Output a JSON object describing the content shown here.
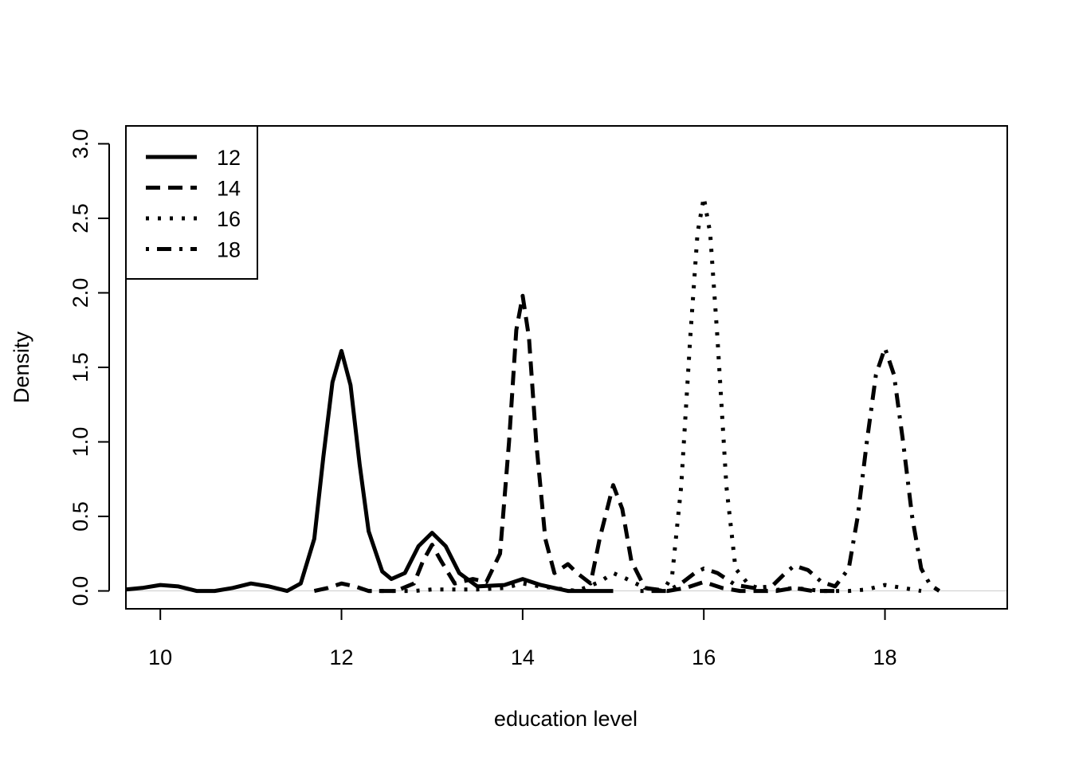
{
  "chart_data": {
    "type": "line",
    "title": "",
    "xlabel": "education level",
    "ylabel": "Density",
    "xlim": [
      9.62,
      19.35
    ],
    "ylim": [
      -0.12,
      3.12
    ],
    "xticks": [
      10,
      12,
      14,
      16,
      18
    ],
    "xtick_labels": [
      "10",
      "12",
      "14",
      "16",
      "18"
    ],
    "yticks": [
      0,
      0.5,
      1,
      1.5,
      2,
      2.5,
      3
    ],
    "ytick_labels": [
      "0.0",
      "0.5",
      "1.0",
      "1.5",
      "2.0",
      "2.5",
      "3.0"
    ],
    "grid": false,
    "legend_position": "top-left",
    "baseline": 0,
    "series": [
      {
        "name": "12",
        "dash": "solid",
        "color": "#000000",
        "points": [
          [
            9.62,
            0.01
          ],
          [
            9.8,
            0.02
          ],
          [
            10.0,
            0.04
          ],
          [
            10.2,
            0.03
          ],
          [
            10.4,
            0.0
          ],
          [
            10.6,
            0.0
          ],
          [
            10.8,
            0.02
          ],
          [
            11.0,
            0.05
          ],
          [
            11.2,
            0.03
          ],
          [
            11.4,
            0.0
          ],
          [
            11.55,
            0.05
          ],
          [
            11.7,
            0.35
          ],
          [
            11.8,
            0.9
          ],
          [
            11.9,
            1.4
          ],
          [
            12.0,
            1.61
          ],
          [
            12.1,
            1.38
          ],
          [
            12.2,
            0.85
          ],
          [
            12.3,
            0.4
          ],
          [
            12.45,
            0.13
          ],
          [
            12.55,
            0.08
          ],
          [
            12.7,
            0.12
          ],
          [
            12.85,
            0.3
          ],
          [
            13.0,
            0.39
          ],
          [
            13.15,
            0.3
          ],
          [
            13.3,
            0.12
          ],
          [
            13.5,
            0.03
          ],
          [
            13.8,
            0.04
          ],
          [
            14.0,
            0.08
          ],
          [
            14.2,
            0.04
          ],
          [
            14.5,
            0.0
          ],
          [
            15.0,
            0.0
          ]
        ]
      },
      {
        "name": "14",
        "dash": "dashed",
        "color": "#000000",
        "points": [
          [
            11.7,
            0.0
          ],
          [
            11.85,
            0.02
          ],
          [
            12.0,
            0.05
          ],
          [
            12.15,
            0.03
          ],
          [
            12.3,
            0.0
          ],
          [
            12.6,
            0.0
          ],
          [
            12.8,
            0.05
          ],
          [
            12.9,
            0.2
          ],
          [
            13.0,
            0.31
          ],
          [
            13.1,
            0.2
          ],
          [
            13.25,
            0.05
          ],
          [
            13.45,
            0.08
          ],
          [
            13.6,
            0.06
          ],
          [
            13.75,
            0.25
          ],
          [
            13.85,
            1.0
          ],
          [
            13.93,
            1.75
          ],
          [
            14.0,
            1.98
          ],
          [
            14.07,
            1.7
          ],
          [
            14.15,
            1.0
          ],
          [
            14.25,
            0.35
          ],
          [
            14.35,
            0.12
          ],
          [
            14.5,
            0.18
          ],
          [
            14.6,
            0.12
          ],
          [
            14.75,
            0.05
          ],
          [
            14.85,
            0.35
          ],
          [
            15.0,
            0.71
          ],
          [
            15.1,
            0.55
          ],
          [
            15.2,
            0.2
          ],
          [
            15.35,
            0.02
          ],
          [
            15.6,
            0.0
          ],
          [
            15.8,
            0.02
          ],
          [
            16.0,
            0.06
          ],
          [
            16.2,
            0.02
          ],
          [
            16.4,
            0.0
          ],
          [
            16.8,
            0.0
          ],
          [
            17.0,
            0.02
          ],
          [
            17.2,
            0.0
          ],
          [
            17.5,
            0.0
          ]
        ]
      },
      {
        "name": "16",
        "dash": "dotted",
        "color": "#000000",
        "points": [
          [
            12.3,
            0.0
          ],
          [
            12.8,
            0.0
          ],
          [
            13.0,
            0.01
          ],
          [
            13.5,
            0.01
          ],
          [
            13.8,
            0.02
          ],
          [
            14.0,
            0.05
          ],
          [
            14.2,
            0.03
          ],
          [
            14.6,
            0.0
          ],
          [
            14.85,
            0.06
          ],
          [
            15.0,
            0.12
          ],
          [
            15.15,
            0.08
          ],
          [
            15.35,
            0.02
          ],
          [
            15.55,
            0.0
          ],
          [
            15.65,
            0.1
          ],
          [
            15.75,
            0.7
          ],
          [
            15.85,
            1.7
          ],
          [
            15.93,
            2.4
          ],
          [
            16.0,
            2.64
          ],
          [
            16.07,
            2.4
          ],
          [
            16.15,
            1.7
          ],
          [
            16.25,
            0.7
          ],
          [
            16.35,
            0.15
          ],
          [
            16.5,
            0.04
          ],
          [
            16.7,
            0.0
          ],
          [
            17.0,
            0.02
          ],
          [
            17.3,
            0.0
          ],
          [
            17.6,
            0.0
          ],
          [
            17.8,
            0.01
          ],
          [
            18.0,
            0.04
          ],
          [
            18.2,
            0.02
          ],
          [
            18.4,
            0.0
          ]
        ]
      },
      {
        "name": "18",
        "dash": "dotdash",
        "color": "#000000",
        "points": [
          [
            15.3,
            0.0
          ],
          [
            15.6,
            0.0
          ],
          [
            15.75,
            0.05
          ],
          [
            15.9,
            0.12
          ],
          [
            16.0,
            0.15
          ],
          [
            16.15,
            0.12
          ],
          [
            16.35,
            0.04
          ],
          [
            16.55,
            0.02
          ],
          [
            16.75,
            0.03
          ],
          [
            16.9,
            0.12
          ],
          [
            17.0,
            0.17
          ],
          [
            17.15,
            0.14
          ],
          [
            17.3,
            0.06
          ],
          [
            17.45,
            0.03
          ],
          [
            17.6,
            0.15
          ],
          [
            17.7,
            0.5
          ],
          [
            17.8,
            1.0
          ],
          [
            17.9,
            1.45
          ],
          [
            18.0,
            1.63
          ],
          [
            18.1,
            1.45
          ],
          [
            18.2,
            1.0
          ],
          [
            18.3,
            0.5
          ],
          [
            18.4,
            0.15
          ],
          [
            18.5,
            0.04
          ],
          [
            18.6,
            0.0
          ]
        ]
      }
    ]
  }
}
